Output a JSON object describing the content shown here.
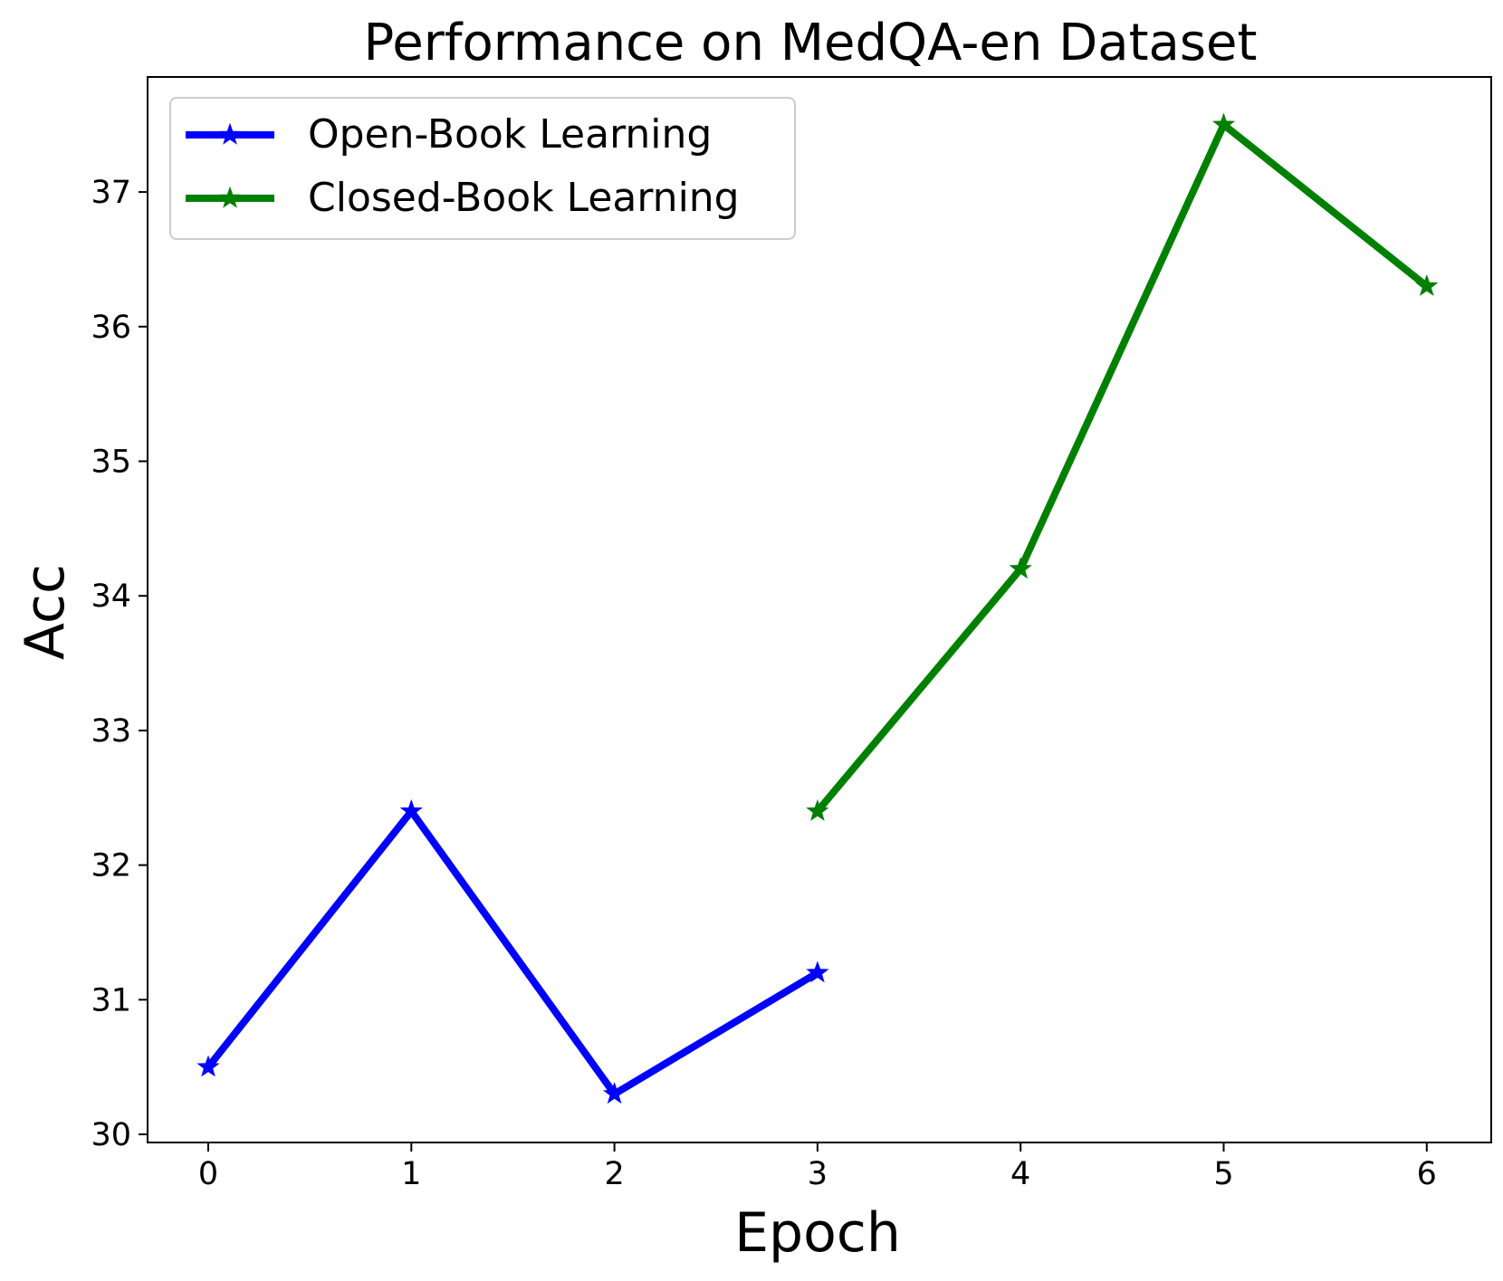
{
  "chart_data": {
    "type": "line",
    "title": "Performance on MedQA-en Dataset",
    "xlabel": "Epoch",
    "ylabel": "Acc",
    "xlim": [
      -0.3,
      6.3
    ],
    "ylim": [
      29.95,
      37.85
    ],
    "xticks": [
      0,
      1,
      2,
      3,
      4,
      5,
      6
    ],
    "yticks": [
      30,
      31,
      32,
      33,
      34,
      35,
      36,
      37
    ],
    "grid": false,
    "legend_position": "top-left",
    "series": [
      {
        "name": "Open-Book Learning",
        "color": "#0000ff",
        "marker": "star",
        "x": [
          0,
          1,
          2,
          3
        ],
        "y": [
          30.5,
          32.4,
          30.3,
          31.2
        ]
      },
      {
        "name": "Closed-Book Learning",
        "color": "#008000",
        "marker": "star",
        "x": [
          3,
          4,
          5,
          6
        ],
        "y": [
          32.4,
          34.2,
          37.5,
          36.3
        ]
      }
    ]
  }
}
